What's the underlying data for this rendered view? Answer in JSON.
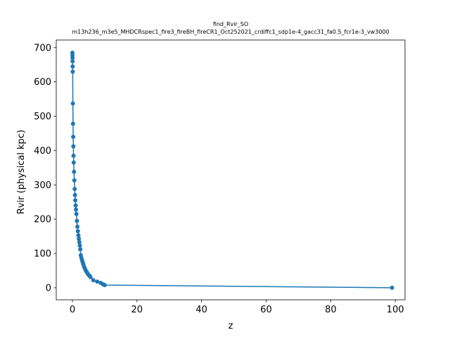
{
  "chart_data": {
    "type": "line",
    "title": "find_Rvir_SO",
    "subtitle": "m13h236_m3e5_MHDCRspec1_fire3_fireBH_fireCR1_Oct252021_crdiffc1_sdp1e-4_gacc31_fa0.5_fcr1e-3_vw3000",
    "xlabel": "z",
    "ylabel": "Rvir (physical kpc)",
    "xlim": [
      -5,
      103
    ],
    "ylim": [
      -35,
      722
    ],
    "xticks": [
      0,
      20,
      40,
      60,
      80,
      100
    ],
    "yticks": [
      0,
      100,
      200,
      300,
      400,
      500,
      600,
      700
    ],
    "grid": false,
    "legend": "none",
    "color": "#1f77b4",
    "markers": "circle",
    "series": [
      {
        "x": [
          0.0,
          0.02,
          0.04,
          0.06,
          0.08,
          0.1,
          0.15,
          0.2,
          0.25,
          0.3,
          0.35,
          0.4,
          0.5,
          0.6,
          0.7,
          0.8,
          0.9,
          1.0,
          1.1,
          1.25,
          1.4,
          1.55,
          1.7,
          1.85,
          2.0,
          2.15,
          2.3,
          2.45,
          2.6,
          2.8,
          3.0,
          3.2,
          3.4,
          3.6,
          3.8,
          4.0,
          4.25,
          4.5,
          4.75,
          5.0,
          5.3,
          5.6,
          6.5,
          7.7,
          8.8,
          9.5,
          10.0,
          99.0
        ],
        "y": [
          685,
          677,
          670,
          660,
          645,
          630,
          537,
          478,
          440,
          412,
          385,
          365,
          338,
          313,
          288,
          270,
          255,
          240,
          228,
          215,
          195,
          178,
          165,
          153,
          143,
          133,
          123,
          112,
          95,
          87,
          80,
          74,
          68,
          62,
          58,
          53,
          49,
          45,
          41,
          38,
          35,
          31,
          22,
          18,
          14,
          10,
          8,
          0
        ]
      }
    ]
  }
}
